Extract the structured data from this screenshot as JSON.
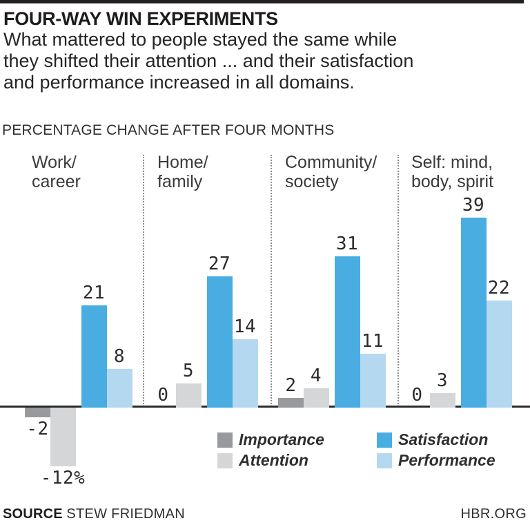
{
  "header": {
    "title": "FOUR-WAY WIN EXPERIMENTS",
    "subtitle_lines": [
      "What mattered to people stayed the same while",
      "they shifted their attention ... and their satisfaction",
      "and performance increased in all domains."
    ],
    "axis_caption": "PERCENTAGE CHANGE AFTER FOUR MONTHS"
  },
  "footer": {
    "source_label": "SOURCE",
    "source_name": "STEW FRIEDMAN",
    "site": "HBR.ORG"
  },
  "colors": {
    "series": {
      "Importance": "#98999C",
      "Attention": "#D5D6D8",
      "Satisfaction": "#49ADE2",
      "Performance": "#B5D8F1"
    },
    "baseline": "#2A2A2A",
    "top_rule": "#231F20"
  },
  "chart_data": {
    "type": "bar",
    "title": "FOUR-WAY WIN EXPERIMENTS",
    "xlabel": "",
    "ylabel": "PERCENTAGE CHANGE AFTER FOUR MONTHS",
    "ylim": [
      -12,
      39
    ],
    "grid": false,
    "legend_position": "bottom",
    "series": [
      "Importance",
      "Attention",
      "Satisfaction",
      "Performance"
    ],
    "categories": [
      "Work/career",
      "Home/family",
      "Community/society",
      "Self: mind, body, spirit"
    ],
    "groups": [
      {
        "label_lines": [
          "Work/",
          "career"
        ],
        "values": {
          "Importance": -2,
          "Attention": -12,
          "Satisfaction": 21,
          "Performance": 8
        },
        "value_labels": {
          "Importance": "-2",
          "Attention": "-12%",
          "Satisfaction": "21",
          "Performance": "8"
        }
      },
      {
        "label_lines": [
          "Home/",
          "family"
        ],
        "values": {
          "Importance": 0,
          "Attention": 5,
          "Satisfaction": 27,
          "Performance": 14
        },
        "value_labels": {
          "Importance": "0",
          "Attention": "5",
          "Satisfaction": "27",
          "Performance": "14"
        }
      },
      {
        "label_lines": [
          "Community/",
          "society"
        ],
        "values": {
          "Importance": 2,
          "Attention": 4,
          "Satisfaction": 31,
          "Performance": 11
        },
        "value_labels": {
          "Importance": "2",
          "Attention": "4",
          "Satisfaction": "31",
          "Performance": "11"
        }
      },
      {
        "label_lines": [
          "Self: mind,",
          "body, spirit"
        ],
        "values": {
          "Importance": 0,
          "Attention": 3,
          "Satisfaction": 39,
          "Performance": 22
        },
        "value_labels": {
          "Importance": "0",
          "Attention": "3",
          "Satisfaction": "39",
          "Performance": "22"
        }
      }
    ],
    "legend": [
      {
        "name": "Importance",
        "series": "Importance"
      },
      {
        "name": "Attention",
        "series": "Attention"
      },
      {
        "name": "Satisfaction",
        "series": "Satisfaction"
      },
      {
        "name": "Performance",
        "series": "Performance"
      }
    ]
  }
}
